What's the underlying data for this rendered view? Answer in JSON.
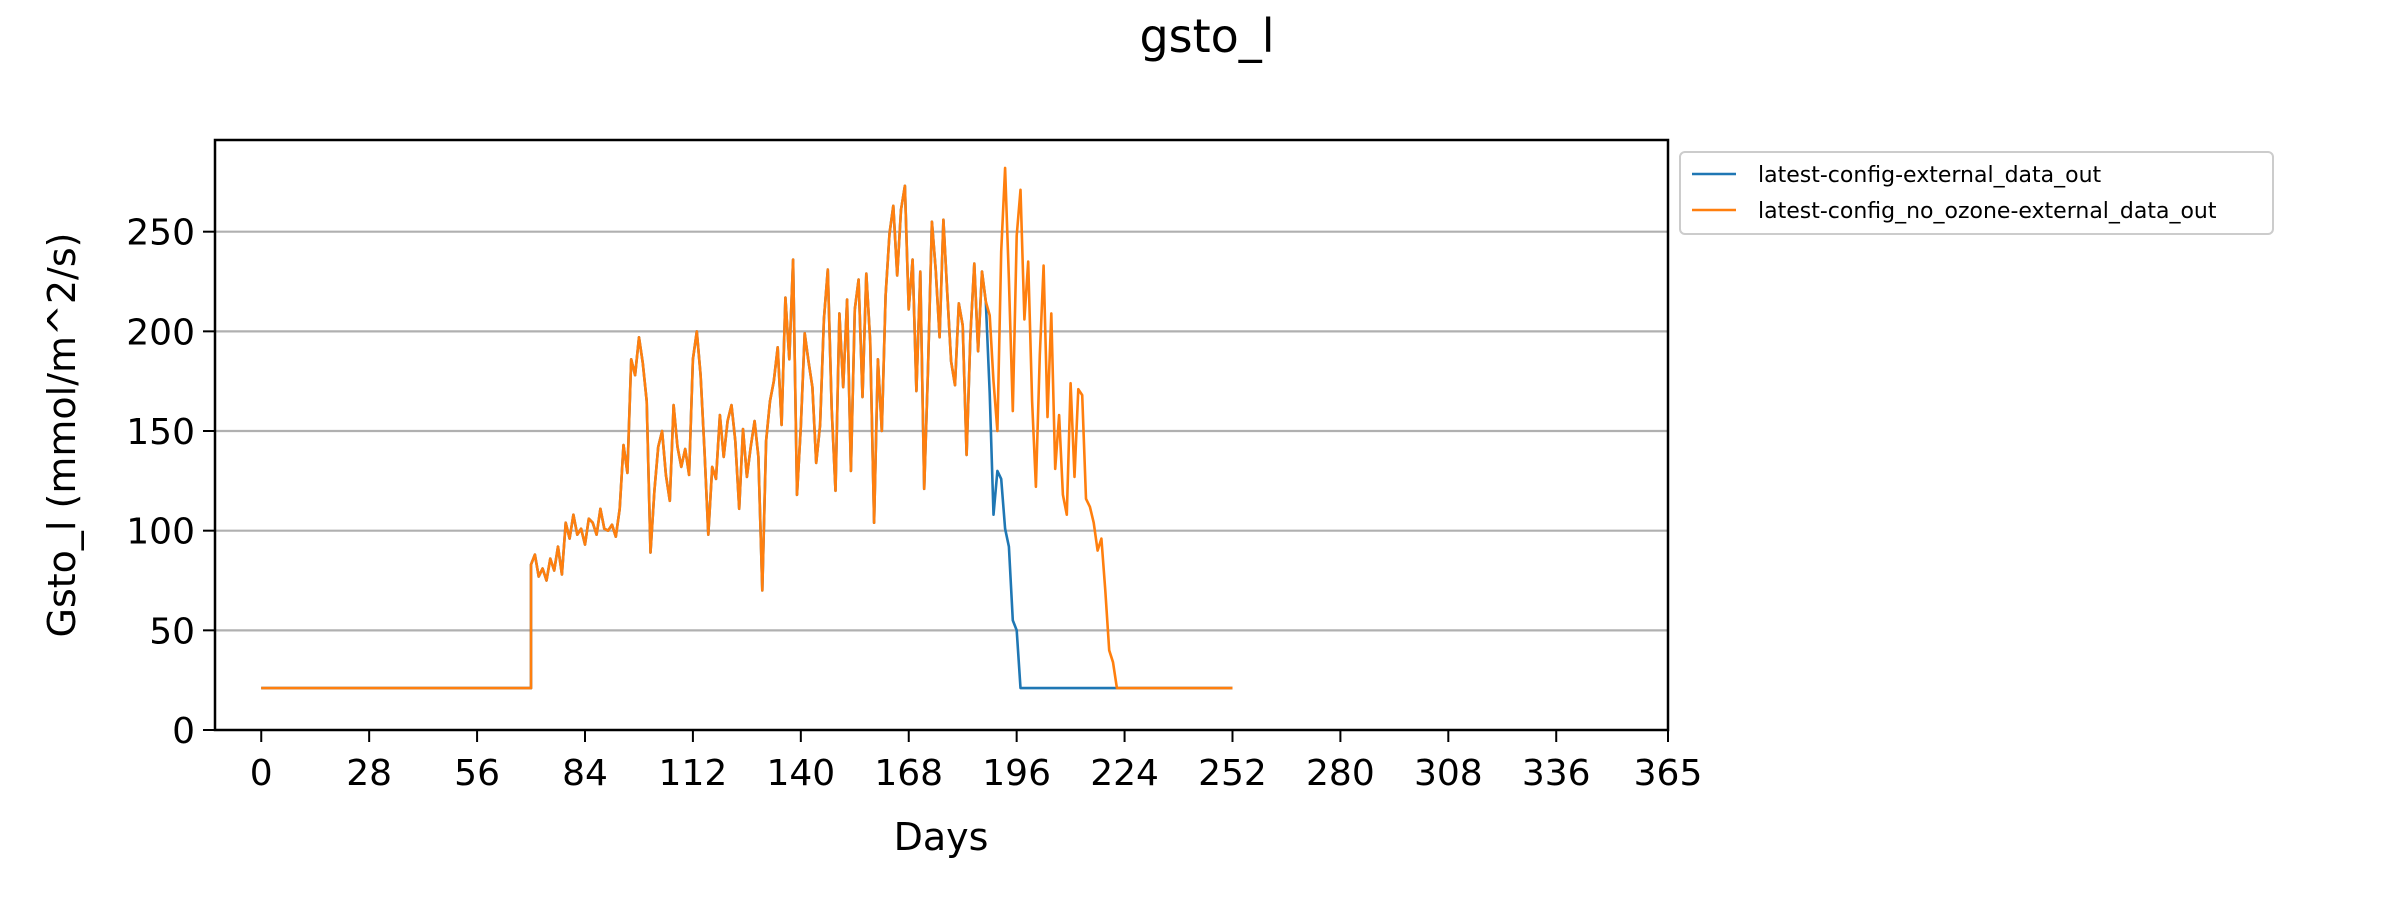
{
  "chart_data": {
    "type": "line",
    "title": "gsto_l",
    "xlabel": "Days",
    "ylabel": "Gsto_l (mmol/m^2/s)",
    "xlim": [
      -12,
      365
    ],
    "ylim": [
      0,
      296
    ],
    "xticks": [
      0,
      28,
      56,
      84,
      112,
      140,
      168,
      196,
      224,
      252,
      280,
      308,
      336,
      365
    ],
    "yticks": [
      0,
      50,
      100,
      150,
      200,
      250
    ],
    "grid": "horizontal",
    "legend_position": "outside-top-right",
    "series": [
      {
        "name": "latest-config-external_data_out",
        "color": "#1f77b4",
        "points": [
          [
            0,
            21
          ],
          [
            70,
            21
          ],
          [
            70,
            21
          ],
          [
            70,
            83
          ],
          [
            71,
            88
          ],
          [
            72,
            77
          ],
          [
            73,
            81
          ],
          [
            74,
            75
          ],
          [
            75,
            86
          ],
          [
            76,
            80
          ],
          [
            77,
            92
          ],
          [
            78,
            78
          ],
          [
            79,
            104
          ],
          [
            80,
            96
          ],
          [
            81,
            108
          ],
          [
            82,
            98
          ],
          [
            83,
            101
          ],
          [
            84,
            93
          ],
          [
            85,
            106
          ],
          [
            86,
            104
          ],
          [
            87,
            98
          ],
          [
            88,
            111
          ],
          [
            89,
            101
          ],
          [
            90,
            100
          ],
          [
            91,
            103
          ],
          [
            92,
            97
          ],
          [
            93,
            111
          ],
          [
            94,
            143
          ],
          [
            95,
            129
          ],
          [
            96,
            186
          ],
          [
            97,
            178
          ],
          [
            98,
            197
          ],
          [
            99,
            184
          ],
          [
            100,
            165
          ],
          [
            101,
            89
          ],
          [
            102,
            120
          ],
          [
            103,
            142
          ],
          [
            104,
            150
          ],
          [
            105,
            128
          ],
          [
            106,
            115
          ],
          [
            107,
            163
          ],
          [
            108,
            142
          ],
          [
            109,
            132
          ],
          [
            110,
            141
          ],
          [
            111,
            128
          ],
          [
            112,
            186
          ],
          [
            113,
            200
          ],
          [
            114,
            178
          ],
          [
            115,
            140
          ],
          [
            116,
            98
          ],
          [
            117,
            132
          ],
          [
            118,
            126
          ],
          [
            119,
            158
          ],
          [
            120,
            137
          ],
          [
            121,
            155
          ],
          [
            122,
            163
          ],
          [
            123,
            145
          ],
          [
            124,
            111
          ],
          [
            125,
            151
          ],
          [
            126,
            127
          ],
          [
            127,
            142
          ],
          [
            128,
            155
          ],
          [
            129,
            137
          ],
          [
            130,
            70
          ],
          [
            131,
            145
          ],
          [
            132,
            165
          ],
          [
            133,
            175
          ],
          [
            134,
            192
          ],
          [
            135,
            153
          ],
          [
            136,
            217
          ],
          [
            137,
            186
          ],
          [
            138,
            236
          ],
          [
            139,
            118
          ],
          [
            140,
            152
          ],
          [
            141,
            199
          ],
          [
            142,
            185
          ],
          [
            143,
            172
          ],
          [
            144,
            134
          ],
          [
            145,
            153
          ],
          [
            146,
            206
          ],
          [
            147,
            231
          ],
          [
            148,
            161
          ],
          [
            149,
            120
          ],
          [
            150,
            209
          ],
          [
            151,
            172
          ],
          [
            152,
            216
          ],
          [
            153,
            130
          ],
          [
            154,
            211
          ],
          [
            155,
            226
          ],
          [
            156,
            167
          ],
          [
            157,
            229
          ],
          [
            158,
            195
          ],
          [
            159,
            104
          ],
          [
            160,
            186
          ],
          [
            161,
            150
          ],
          [
            162,
            218
          ],
          [
            163,
            249
          ],
          [
            164,
            263
          ],
          [
            165,
            228
          ],
          [
            166,
            261
          ],
          [
            167,
            273
          ],
          [
            168,
            211
          ],
          [
            169,
            236
          ],
          [
            170,
            170
          ],
          [
            171,
            230
          ],
          [
            172,
            121
          ],
          [
            173,
            181
          ],
          [
            174,
            255
          ],
          [
            175,
            231
          ],
          [
            176,
            197
          ],
          [
            177,
            256
          ],
          [
            178,
            219
          ],
          [
            179,
            185
          ],
          [
            180,
            173
          ],
          [
            181,
            214
          ],
          [
            182,
            203
          ],
          [
            183,
            138
          ],
          [
            184,
            198
          ],
          [
            185,
            234
          ],
          [
            186,
            190
          ],
          [
            187,
            230
          ],
          [
            188,
            215
          ],
          [
            189,
            169
          ],
          [
            190,
            108
          ],
          [
            191,
            130
          ],
          [
            192,
            126
          ],
          [
            193,
            101
          ],
          [
            194,
            92
          ],
          [
            195,
            55
          ],
          [
            196,
            50
          ],
          [
            197,
            21
          ],
          [
            222,
            21
          ],
          [
            252,
            21
          ]
        ]
      },
      {
        "name": "latest-config_no_ozone-external_data_out",
        "color": "#ff7f0e",
        "points": [
          [
            0,
            21
          ],
          [
            70,
            21
          ],
          [
            70,
            21
          ],
          [
            70,
            83
          ],
          [
            71,
            88
          ],
          [
            72,
            77
          ],
          [
            73,
            81
          ],
          [
            74,
            75
          ],
          [
            75,
            86
          ],
          [
            76,
            80
          ],
          [
            77,
            92
          ],
          [
            78,
            78
          ],
          [
            79,
            104
          ],
          [
            80,
            96
          ],
          [
            81,
            108
          ],
          [
            82,
            98
          ],
          [
            83,
            101
          ],
          [
            84,
            93
          ],
          [
            85,
            106
          ],
          [
            86,
            104
          ],
          [
            87,
            98
          ],
          [
            88,
            111
          ],
          [
            89,
            101
          ],
          [
            90,
            100
          ],
          [
            91,
            103
          ],
          [
            92,
            97
          ],
          [
            93,
            111
          ],
          [
            94,
            143
          ],
          [
            95,
            129
          ],
          [
            96,
            186
          ],
          [
            97,
            178
          ],
          [
            98,
            197
          ],
          [
            99,
            184
          ],
          [
            100,
            165
          ],
          [
            101,
            89
          ],
          [
            102,
            120
          ],
          [
            103,
            142
          ],
          [
            104,
            150
          ],
          [
            105,
            128
          ],
          [
            106,
            115
          ],
          [
            107,
            163
          ],
          [
            108,
            142
          ],
          [
            109,
            132
          ],
          [
            110,
            141
          ],
          [
            111,
            128
          ],
          [
            112,
            186
          ],
          [
            113,
            200
          ],
          [
            114,
            178
          ],
          [
            115,
            140
          ],
          [
            116,
            98
          ],
          [
            117,
            132
          ],
          [
            118,
            126
          ],
          [
            119,
            158
          ],
          [
            120,
            137
          ],
          [
            121,
            155
          ],
          [
            122,
            163
          ],
          [
            123,
            145
          ],
          [
            124,
            111
          ],
          [
            125,
            151
          ],
          [
            126,
            127
          ],
          [
            127,
            142
          ],
          [
            128,
            155
          ],
          [
            129,
            137
          ],
          [
            130,
            70
          ],
          [
            131,
            145
          ],
          [
            132,
            165
          ],
          [
            133,
            175
          ],
          [
            134,
            192
          ],
          [
            135,
            153
          ],
          [
            136,
            217
          ],
          [
            137,
            186
          ],
          [
            138,
            236
          ],
          [
            139,
            118
          ],
          [
            140,
            152
          ],
          [
            141,
            199
          ],
          [
            142,
            185
          ],
          [
            143,
            172
          ],
          [
            144,
            134
          ],
          [
            145,
            153
          ],
          [
            146,
            206
          ],
          [
            147,
            231
          ],
          [
            148,
            161
          ],
          [
            149,
            120
          ],
          [
            150,
            209
          ],
          [
            151,
            172
          ],
          [
            152,
            216
          ],
          [
            153,
            130
          ],
          [
            154,
            211
          ],
          [
            155,
            226
          ],
          [
            156,
            167
          ],
          [
            157,
            229
          ],
          [
            158,
            195
          ],
          [
            159,
            104
          ],
          [
            160,
            186
          ],
          [
            161,
            150
          ],
          [
            162,
            218
          ],
          [
            163,
            249
          ],
          [
            164,
            263
          ],
          [
            165,
            228
          ],
          [
            166,
            261
          ],
          [
            167,
            273
          ],
          [
            168,
            211
          ],
          [
            169,
            236
          ],
          [
            170,
            170
          ],
          [
            171,
            230
          ],
          [
            172,
            121
          ],
          [
            173,
            181
          ],
          [
            174,
            255
          ],
          [
            175,
            231
          ],
          [
            176,
            197
          ],
          [
            177,
            256
          ],
          [
            178,
            219
          ],
          [
            179,
            185
          ],
          [
            180,
            173
          ],
          [
            181,
            214
          ],
          [
            182,
            203
          ],
          [
            183,
            138
          ],
          [
            184,
            198
          ],
          [
            185,
            234
          ],
          [
            186,
            190
          ],
          [
            187,
            230
          ],
          [
            188,
            215
          ],
          [
            189,
            208
          ],
          [
            190,
            175
          ],
          [
            191,
            150
          ],
          [
            192,
            240
          ],
          [
            193,
            282
          ],
          [
            194,
            226
          ],
          [
            195,
            160
          ],
          [
            196,
            248
          ],
          [
            197,
            271
          ],
          [
            198,
            206
          ],
          [
            199,
            235
          ],
          [
            200,
            165
          ],
          [
            201,
            122
          ],
          [
            202,
            188
          ],
          [
            203,
            233
          ],
          [
            204,
            157
          ],
          [
            205,
            209
          ],
          [
            206,
            131
          ],
          [
            207,
            158
          ],
          [
            208,
            118
          ],
          [
            209,
            108
          ],
          [
            210,
            174
          ],
          [
            211,
            127
          ],
          [
            212,
            171
          ],
          [
            213,
            168
          ],
          [
            214,
            116
          ],
          [
            215,
            112
          ],
          [
            216,
            104
          ],
          [
            217,
            90
          ],
          [
            218,
            96
          ],
          [
            219,
            70
          ],
          [
            220,
            40
          ],
          [
            221,
            34
          ],
          [
            222,
            21
          ],
          [
            252,
            21
          ]
        ]
      }
    ]
  }
}
